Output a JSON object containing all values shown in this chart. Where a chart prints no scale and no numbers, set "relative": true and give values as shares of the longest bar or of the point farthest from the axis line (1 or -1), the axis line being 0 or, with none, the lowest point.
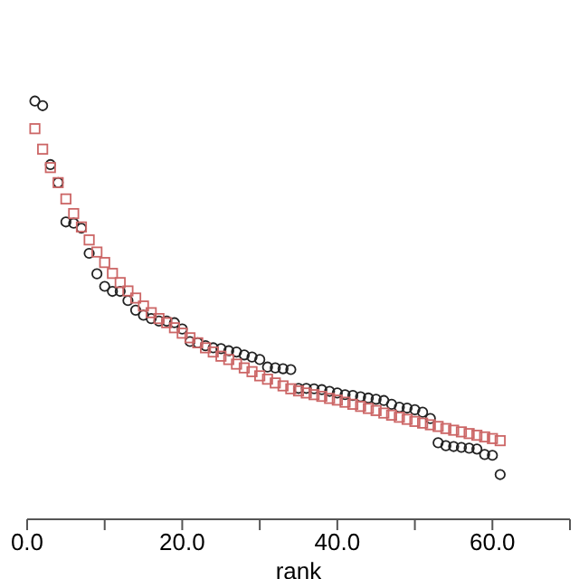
{
  "chart_data": {
    "type": "scatter",
    "xlabel": "rank",
    "relative": true,
    "xlim": [
      0,
      70
    ],
    "xticks": [
      {
        "value": 0,
        "label": "0.0"
      },
      {
        "value": 10,
        "label": null
      },
      {
        "value": 20,
        "label": "20.0"
      },
      {
        "value": 30,
        "label": null
      },
      {
        "value": 40,
        "label": "40.0"
      },
      {
        "value": 50,
        "label": null
      },
      {
        "value": 60,
        "label": "60.0"
      },
      {
        "value": 70,
        "label": null
      }
    ],
    "x": [
      1,
      2,
      3,
      4,
      5,
      6,
      7,
      8,
      9,
      10,
      11,
      12,
      13,
      14,
      15,
      16,
      17,
      18,
      19,
      20,
      21,
      22,
      23,
      24,
      25,
      26,
      27,
      28,
      29,
      30,
      31,
      32,
      33,
      34,
      35,
      36,
      37,
      38,
      39,
      40,
      41,
      42,
      43,
      44,
      45,
      46,
      47,
      48,
      49,
      50,
      51,
      52,
      53,
      54,
      55,
      56,
      57,
      58,
      59,
      60,
      61
    ],
    "series": [
      {
        "color": "#222222",
        "marker": "circle",
        "values": [
          1.0,
          0.989,
          0.848,
          0.805,
          0.711,
          0.708,
          0.696,
          0.636,
          0.587,
          0.557,
          0.545,
          0.545,
          0.523,
          0.5,
          0.488,
          0.48,
          0.474,
          0.474,
          0.47,
          0.455,
          0.425,
          0.422,
          0.415,
          0.41,
          0.408,
          0.403,
          0.4,
          0.393,
          0.388,
          0.382,
          0.364,
          0.362,
          0.36,
          0.358,
          0.313,
          0.313,
          0.312,
          0.31,
          0.306,
          0.302,
          0.298,
          0.296,
          0.293,
          0.29,
          0.287,
          0.284,
          0.275,
          0.268,
          0.266,
          0.262,
          0.256,
          0.241,
          0.183,
          0.176,
          0.174,
          0.172,
          0.17,
          0.168,
          0.155,
          0.153,
          0.107
        ]
      },
      {
        "color": "#cc6666",
        "marker": "square",
        "values": [
          0.934,
          0.885,
          0.841,
          0.805,
          0.766,
          0.731,
          0.699,
          0.668,
          0.639,
          0.614,
          0.588,
          0.566,
          0.546,
          0.529,
          0.51,
          0.494,
          0.48,
          0.47,
          0.458,
          0.445,
          0.434,
          0.422,
          0.41,
          0.4,
          0.39,
          0.382,
          0.371,
          0.362,
          0.353,
          0.343,
          0.335,
          0.326,
          0.319,
          0.312,
          0.307,
          0.302,
          0.298,
          0.294,
          0.289,
          0.285,
          0.28,
          0.275,
          0.27,
          0.265,
          0.26,
          0.254,
          0.249,
          0.244,
          0.239,
          0.234,
          0.23,
          0.226,
          0.222,
          0.217,
          0.213,
          0.209,
          0.205,
          0.201,
          0.197,
          0.193,
          0.188
        ]
      }
    ]
  }
}
